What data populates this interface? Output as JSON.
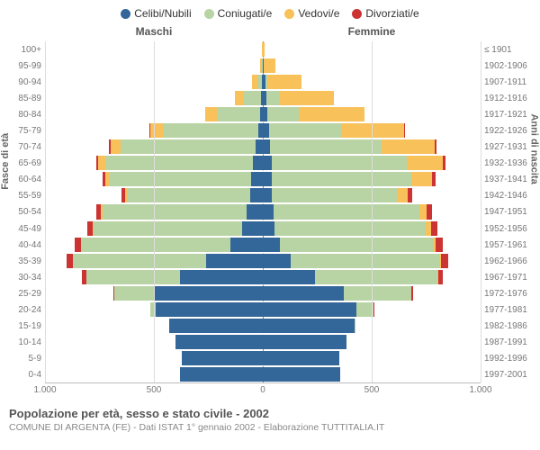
{
  "chart": {
    "type": "population-pyramid",
    "background_color": "#ffffff",
    "grid_color": "#dddddd",
    "center_line_color": "#888888",
    "text_color": "#666666",
    "x_max": 1000,
    "x_ticks": [
      1000,
      500,
      0,
      500,
      1000
    ],
    "legend": [
      {
        "label": "Celibi/Nubili",
        "color": "#336699"
      },
      {
        "label": "Coniugati/e",
        "color": "#b8d4a5"
      },
      {
        "label": "Vedovi/e",
        "color": "#f8c15a"
      },
      {
        "label": "Divorziati/e",
        "color": "#cc3333"
      }
    ],
    "headers": {
      "male": "Maschi",
      "female": "Femmine"
    },
    "y_left_label": "Fasce di età",
    "y_right_label": "Anni di nascita",
    "age_labels": [
      "100+",
      "95-99",
      "90-94",
      "85-89",
      "80-84",
      "75-79",
      "70-74",
      "65-69",
      "60-64",
      "55-59",
      "50-54",
      "45-49",
      "40-44",
      "35-39",
      "30-34",
      "25-29",
      "20-24",
      "15-19",
      "10-14",
      "5-9",
      "0-4"
    ],
    "birth_labels": [
      "≤ 1901",
      "1902-1906",
      "1907-1911",
      "1912-1916",
      "1917-1921",
      "1922-1926",
      "1927-1931",
      "1932-1936",
      "1937-1941",
      "1942-1946",
      "1947-1951",
      "1952-1956",
      "1957-1961",
      "1962-1966",
      "1967-1971",
      "1972-1976",
      "1977-1981",
      "1982-1986",
      "1987-1991",
      "1992-1996",
      "1997-2001"
    ],
    "rows": [
      {
        "m": {
          "c": 0,
          "co": 0,
          "v": 3,
          "d": 0
        },
        "f": {
          "c": 0,
          "co": 0,
          "v": 10,
          "d": 0
        }
      },
      {
        "m": {
          "c": 2,
          "co": 2,
          "v": 8,
          "d": 0
        },
        "f": {
          "c": 4,
          "co": 2,
          "v": 50,
          "d": 0
        }
      },
      {
        "m": {
          "c": 4,
          "co": 20,
          "v": 25,
          "d": 0
        },
        "f": {
          "c": 12,
          "co": 10,
          "v": 155,
          "d": 0
        }
      },
      {
        "m": {
          "c": 10,
          "co": 75,
          "v": 45,
          "d": 0
        },
        "f": {
          "c": 18,
          "co": 55,
          "v": 255,
          "d": 0
        }
      },
      {
        "m": {
          "c": 14,
          "co": 195,
          "v": 55,
          "d": 0
        },
        "f": {
          "c": 22,
          "co": 145,
          "v": 300,
          "d": 0
        }
      },
      {
        "m": {
          "c": 22,
          "co": 435,
          "v": 58,
          "d": 5
        },
        "f": {
          "c": 28,
          "co": 330,
          "v": 290,
          "d": 6
        }
      },
      {
        "m": {
          "c": 32,
          "co": 620,
          "v": 45,
          "d": 8
        },
        "f": {
          "c": 34,
          "co": 510,
          "v": 245,
          "d": 10
        }
      },
      {
        "m": {
          "c": 45,
          "co": 680,
          "v": 30,
          "d": 10
        },
        "f": {
          "c": 40,
          "co": 620,
          "v": 165,
          "d": 14
        }
      },
      {
        "m": {
          "c": 55,
          "co": 650,
          "v": 18,
          "d": 14
        },
        "f": {
          "c": 42,
          "co": 640,
          "v": 95,
          "d": 18
        }
      },
      {
        "m": {
          "c": 58,
          "co": 565,
          "v": 10,
          "d": 16
        },
        "f": {
          "c": 40,
          "co": 575,
          "v": 50,
          "d": 20
        }
      },
      {
        "m": {
          "c": 75,
          "co": 660,
          "v": 8,
          "d": 22
        },
        "f": {
          "c": 48,
          "co": 670,
          "v": 35,
          "d": 25
        }
      },
      {
        "m": {
          "c": 95,
          "co": 680,
          "v": 5,
          "d": 26
        },
        "f": {
          "c": 55,
          "co": 695,
          "v": 22,
          "d": 30
        }
      },
      {
        "m": {
          "c": 150,
          "co": 680,
          "v": 3,
          "d": 30
        },
        "f": {
          "c": 80,
          "co": 700,
          "v": 14,
          "d": 34
        }
      },
      {
        "m": {
          "c": 260,
          "co": 610,
          "v": 2,
          "d": 30
        },
        "f": {
          "c": 130,
          "co": 680,
          "v": 8,
          "d": 34
        }
      },
      {
        "m": {
          "c": 380,
          "co": 430,
          "v": 1,
          "d": 18
        },
        "f": {
          "c": 240,
          "co": 560,
          "v": 4,
          "d": 22
        }
      },
      {
        "m": {
          "c": 500,
          "co": 180,
          "v": 0,
          "d": 6
        },
        "f": {
          "c": 370,
          "co": 310,
          "v": 2,
          "d": 10
        }
      },
      {
        "m": {
          "c": 490,
          "co": 25,
          "v": 0,
          "d": 1
        },
        "f": {
          "c": 430,
          "co": 80,
          "v": 0,
          "d": 2
        }
      },
      {
        "m": {
          "c": 430,
          "co": 0,
          "v": 0,
          "d": 0
        },
        "f": {
          "c": 420,
          "co": 4,
          "v": 0,
          "d": 0
        }
      },
      {
        "m": {
          "c": 400,
          "co": 0,
          "v": 0,
          "d": 0
        },
        "f": {
          "c": 385,
          "co": 0,
          "v": 0,
          "d": 0
        }
      },
      {
        "m": {
          "c": 370,
          "co": 0,
          "v": 0,
          "d": 0
        },
        "f": {
          "c": 350,
          "co": 0,
          "v": 0,
          "d": 0
        }
      },
      {
        "m": {
          "c": 380,
          "co": 0,
          "v": 0,
          "d": 0
        },
        "f": {
          "c": 355,
          "co": 0,
          "v": 0,
          "d": 0
        }
      }
    ]
  },
  "footer": {
    "title": "Popolazione per età, sesso e stato civile - 2002",
    "subtitle": "COMUNE DI ARGENTA (FE) - Dati ISTAT 1° gennaio 2002 - Elaborazione TUTTITALIA.IT"
  }
}
